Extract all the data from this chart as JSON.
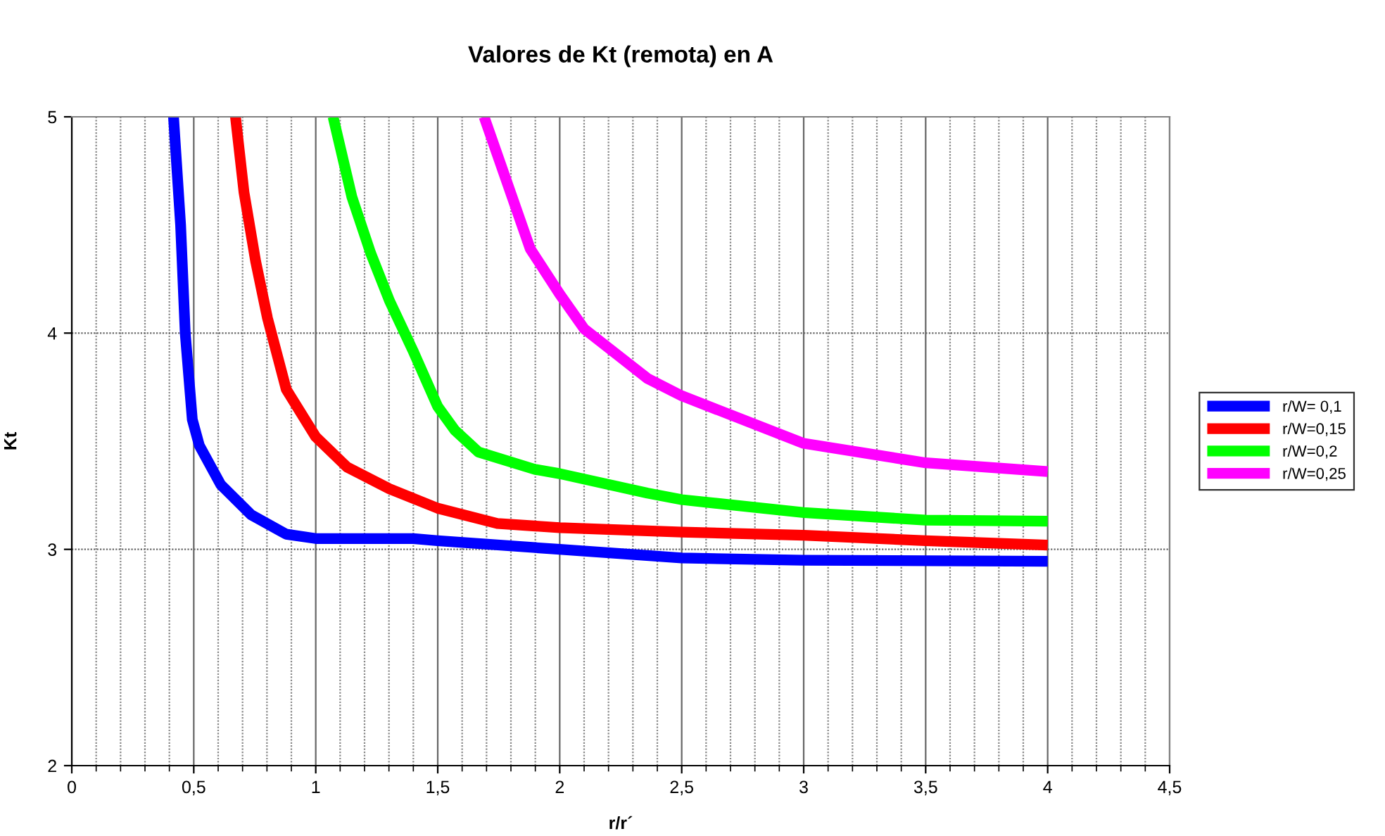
{
  "chart_data": {
    "type": "line",
    "title": "Valores de Kt (remota) en A",
    "xlabel": "r/r´",
    "ylabel": "Kt",
    "xlim": [
      0,
      4.5
    ],
    "ylim": [
      2,
      5
    ],
    "xticks": [
      {
        "value": 0,
        "label": "0"
      },
      {
        "value": 0.5,
        "label": "0,5"
      },
      {
        "value": 1,
        "label": "1"
      },
      {
        "value": 1.5,
        "label": "1,5"
      },
      {
        "value": 2,
        "label": "2"
      },
      {
        "value": 2.5,
        "label": "2,5"
      },
      {
        "value": 3,
        "label": "3"
      },
      {
        "value": 3.5,
        "label": "3,5"
      },
      {
        "value": 4,
        "label": "4"
      },
      {
        "value": 4.5,
        "label": "4,5"
      }
    ],
    "yticks": [
      2,
      3,
      4,
      5
    ],
    "grid": true,
    "legend": "right",
    "marker": "none",
    "line_style": "solid",
    "series": [
      {
        "name": "r/W= 0,1",
        "color": "#0000ff",
        "x": [
          0.417,
          0.446,
          0.465,
          0.494,
          0.523,
          0.61,
          0.735,
          0.879,
          1.0,
          1.4,
          1.5,
          2.0,
          2.5,
          3.0,
          4.0
        ],
        "values": [
          5,
          4.5,
          4.0,
          3.6,
          3.48,
          3.3,
          3.16,
          3.07,
          3.05,
          3.05,
          3.04,
          3.0,
          2.96,
          2.95,
          2.945
        ]
      },
      {
        "name": "r/W=0,15",
        "color": "#ff0000",
        "x": [
          0.671,
          0.706,
          0.754,
          0.802,
          0.879,
          1.0,
          1.129,
          1.302,
          1.5,
          1.744,
          2.0,
          2.5,
          3.0,
          3.5,
          4.0
        ],
        "values": [
          5,
          4.65,
          4.33,
          4.07,
          3.74,
          3.52,
          3.38,
          3.28,
          3.19,
          3.12,
          3.1,
          3.08,
          3.065,
          3.04,
          3.02
        ]
      },
      {
        "name": "r/W=0,2",
        "color": "#00ff00",
        "x": [
          1.071,
          1.148,
          1.225,
          1.302,
          1.398,
          1.5,
          1.571,
          1.667,
          1.898,
          2.0,
          2.36,
          2.5,
          3.0,
          3.5,
          4.0
        ],
        "values": [
          5,
          4.63,
          4.37,
          4.15,
          3.92,
          3.66,
          3.55,
          3.45,
          3.37,
          3.35,
          3.26,
          3.23,
          3.17,
          3.135,
          3.13
        ]
      },
      {
        "name": "r/W=0,25",
        "color": "#ff00ff",
        "x": [
          1.69,
          1.783,
          1.879,
          2.0,
          2.1,
          2.36,
          2.5,
          3.0,
          3.5,
          4.0
        ],
        "values": [
          5,
          4.7,
          4.39,
          4.18,
          4.02,
          3.79,
          3.71,
          3.49,
          3.4,
          3.36
        ]
      }
    ]
  }
}
